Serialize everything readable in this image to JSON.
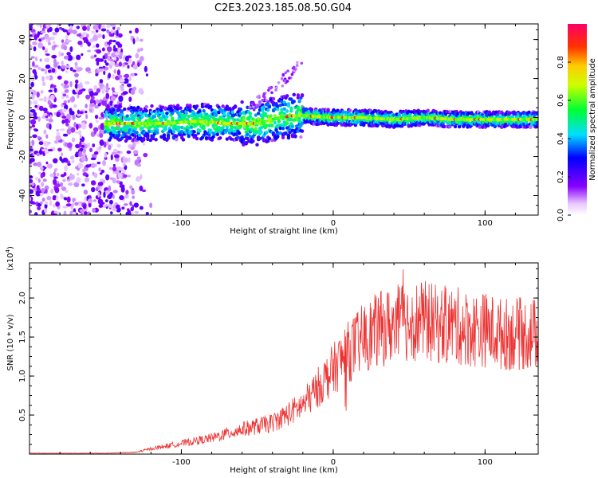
{
  "title": "C2E3.2023.185.08.50.G04",
  "chart_data": [
    {
      "type": "heatmap",
      "xlabel": "Height of straight line (km)",
      "ylabel": "Frequency (Hz)",
      "xlim": [
        -200,
        135
      ],
      "ylim": [
        -50,
        48
      ],
      "xticks": [
        -100,
        0,
        100
      ],
      "yticks": [
        -40,
        -20,
        0,
        20,
        40
      ],
      "xtick_labels": [
        "-100",
        "0",
        "100"
      ],
      "ytick_labels": [
        "-40",
        "-20",
        "0",
        "20",
        "40"
      ],
      "centerline": {
        "x": [
          -150,
          -130,
          -110,
          -90,
          -70,
          -50,
          -35,
          -25,
          -20,
          0,
          20,
          40,
          60,
          80,
          100,
          120,
          135
        ],
        "y": [
          -3,
          -3,
          -3,
          -2,
          -3,
          -3,
          0,
          1,
          1,
          0,
          0,
          -1,
          0,
          -1,
          -1,
          -1,
          -1
        ]
      },
      "noise_region_x": [
        -200,
        -130
      ],
      "colorbar": {
        "label": "Normalized spectral amplitude",
        "ticks": [
          0.0,
          0.2,
          0.4,
          0.6,
          0.8
        ],
        "tick_labels": [
          "0.0",
          "0.2",
          "0.4",
          "0.6",
          "0.8"
        ],
        "range": [
          0,
          1
        ]
      }
    },
    {
      "type": "line",
      "xlabel": "Height of straight line (km)",
      "ylabel": "SNR (10 * v/v)",
      "scale_label": "(x10",
      "scale_exp": "4",
      "scale_close": ")",
      "xlim": [
        -200,
        135
      ],
      "ylim": [
        0,
        2.45
      ],
      "xticks": [
        -100,
        0,
        100
      ],
      "yticks": [
        0.5,
        1.0,
        1.5,
        2.0
      ],
      "xtick_labels": [
        "-100",
        "0",
        "100"
      ],
      "ytick_labels": [
        "0.5",
        "1.0",
        "1.5",
        "2.0"
      ],
      "series": [
        {
          "color": "#ee3333",
          "envelope_x": [
            -200,
            -150,
            -130,
            -120,
            -110,
            -100,
            -80,
            -60,
            -40,
            -30,
            -20,
            -10,
            0,
            10,
            20,
            30,
            40,
            50,
            60,
            70,
            80,
            90,
            100,
            110,
            120,
            135
          ],
          "envelope_y": [
            0.01,
            0.01,
            0.02,
            0.06,
            0.09,
            0.12,
            0.18,
            0.28,
            0.35,
            0.45,
            0.55,
            0.75,
            0.95,
            1.15,
            1.3,
            1.4,
            1.45,
            1.5,
            1.5,
            1.45,
            1.45,
            1.4,
            1.4,
            1.35,
            1.35,
            1.35
          ]
        }
      ]
    }
  ]
}
